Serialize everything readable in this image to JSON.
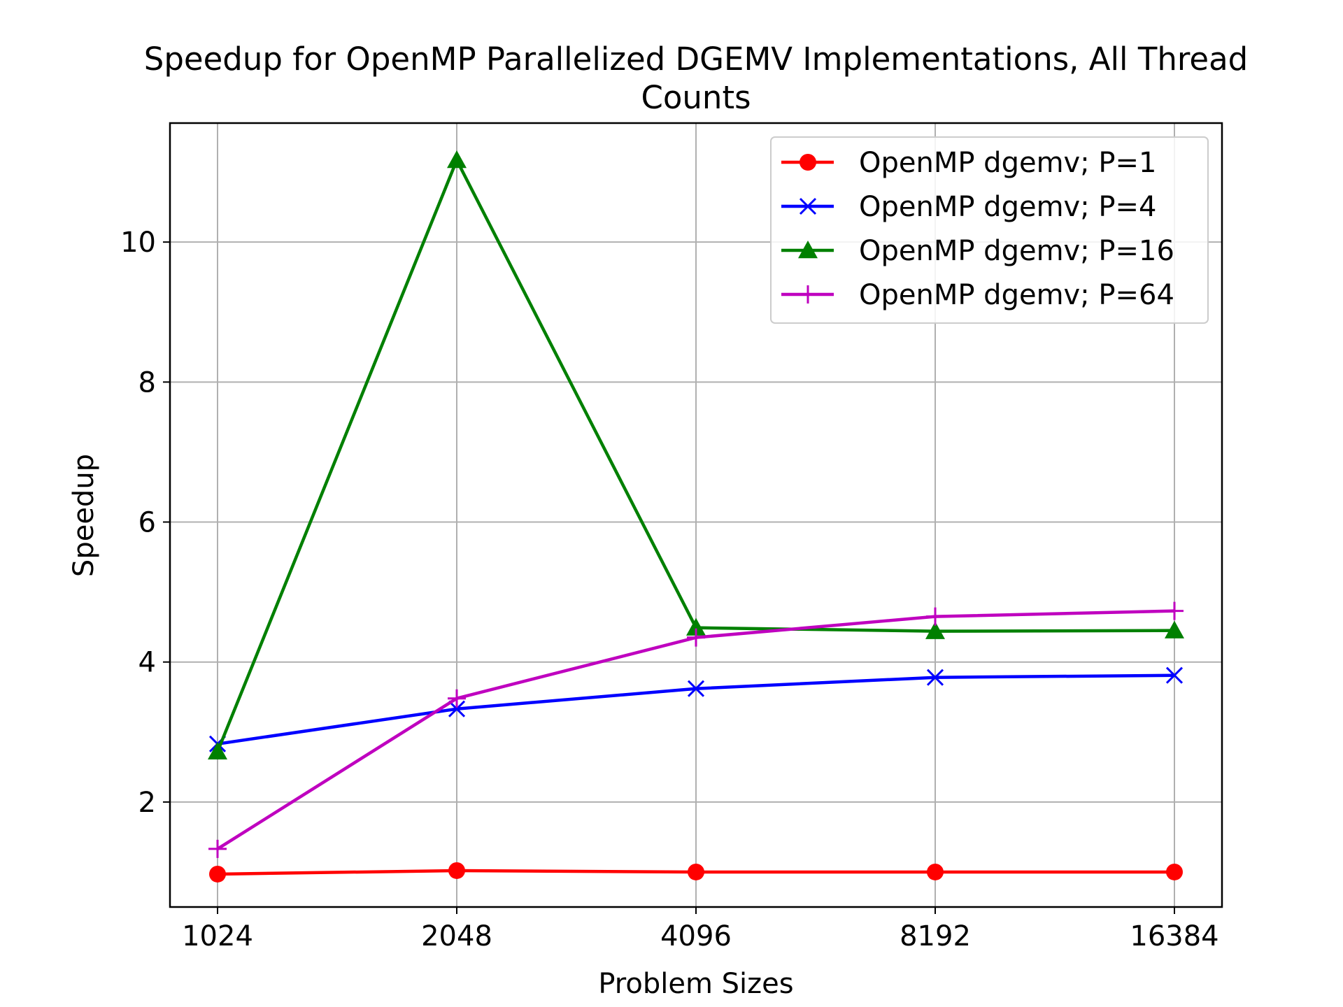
{
  "chart_data": {
    "type": "line",
    "title": "Speedup for OpenMP Parallelized DGEMV Implementations, All Thread Counts",
    "title_lines": [
      "Speedup for OpenMP Parallelized DGEMV Implementations, All Thread",
      "Counts"
    ],
    "xlabel": "Problem Sizes",
    "ylabel": "Speedup",
    "categories": [
      "1024",
      "2048",
      "4096",
      "8192",
      "16384"
    ],
    "ylim": [
      0.5,
      11.7
    ],
    "yticks": [
      2,
      4,
      6,
      8,
      10
    ],
    "grid": true,
    "legend_position": "upper right",
    "series": [
      {
        "name": "OpenMP dgemv; P=1",
        "color": "#ff0000",
        "marker": "circle",
        "values": [
          0.97,
          1.02,
          1.0,
          1.0,
          1.0
        ]
      },
      {
        "name": "OpenMP dgemv; P=4",
        "color": "#0000ff",
        "marker": "x",
        "values": [
          2.83,
          3.33,
          3.62,
          3.78,
          3.81
        ]
      },
      {
        "name": "OpenMP dgemv; P=16",
        "color": "#008000",
        "marker": "triangle",
        "values": [
          2.72,
          11.17,
          4.49,
          4.44,
          4.45
        ]
      },
      {
        "name": "OpenMP dgemv; P=64",
        "color": "#bf00bf",
        "marker": "plus",
        "values": [
          1.33,
          3.48,
          4.35,
          4.65,
          4.73
        ]
      }
    ]
  }
}
